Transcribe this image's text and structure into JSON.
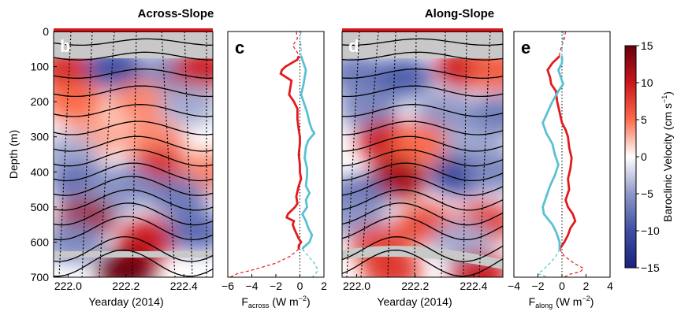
{
  "chart_data": [
    {
      "type": "heatmap",
      "panel_label": "b",
      "title": "Across-Slope",
      "xlabel": "Yearday (2014)",
      "ylabel": "Depth (m)",
      "xlim": [
        221.95,
        222.5
      ],
      "ylim": [
        700,
        0
      ],
      "xticks": [
        "222.0",
        "222.2",
        "222.4"
      ],
      "yticks": [
        "0",
        "100",
        "200",
        "300",
        "400",
        "500",
        "600",
        "700"
      ],
      "blobs": [
        {
          "x": 222.0,
          "depth": 110,
          "value": 9
        },
        {
          "x": 222.16,
          "depth": 105,
          "value": -10
        },
        {
          "x": 222.36,
          "depth": 115,
          "value": -6
        },
        {
          "x": 222.46,
          "depth": 110,
          "value": 10
        },
        {
          "x": 222.02,
          "depth": 200,
          "value": 5
        },
        {
          "x": 222.25,
          "depth": 200,
          "value": 4
        },
        {
          "x": 222.42,
          "depth": 210,
          "value": -4
        },
        {
          "x": 222.1,
          "depth": 300,
          "value": 3
        },
        {
          "x": 222.3,
          "depth": 310,
          "value": 4
        },
        {
          "x": 222.0,
          "depth": 350,
          "value": -4
        },
        {
          "x": 222.32,
          "depth": 390,
          "value": 9
        },
        {
          "x": 222.48,
          "depth": 400,
          "value": 4
        },
        {
          "x": 222.04,
          "depth": 430,
          "value": -8
        },
        {
          "x": 222.2,
          "depth": 440,
          "value": -6
        },
        {
          "x": 222.12,
          "depth": 480,
          "value": -5
        },
        {
          "x": 222.38,
          "depth": 470,
          "value": -7
        },
        {
          "x": 222.06,
          "depth": 535,
          "value": 12
        },
        {
          "x": 222.28,
          "depth": 590,
          "value": 10
        },
        {
          "x": 222.45,
          "depth": 570,
          "value": -8
        },
        {
          "x": 222.02,
          "depth": 600,
          "value": -6
        },
        {
          "x": 222.2,
          "depth": 680,
          "value": 15
        }
      ],
      "colorbar": {
        "label": "Baroclinic Velocity (cm s",
        "label_sup": "−1",
        "label_end": ")",
        "ticks": [
          "15",
          "10",
          "5",
          "0",
          "−5",
          "−10",
          "−15"
        ],
        "range": [
          -15,
          15
        ]
      }
    },
    {
      "type": "line",
      "panel_label": "c",
      "xlabel": "F",
      "xlabel_sub": "across",
      "xlabel_unit": " (W m",
      "xlabel_sup": "−2",
      "xlabel_end": ")",
      "xlim": [
        -6,
        2
      ],
      "ylim": [
        700,
        0
      ],
      "xticks": [
        "−6",
        "−4",
        "−2",
        "0",
        "2"
      ],
      "series": [
        {
          "color": "#e31a1c",
          "style": "solid",
          "points": [
            [
              -0.1,
              70
            ],
            [
              -0.2,
              80
            ],
            [
              -1.2,
              100
            ],
            [
              -1.5,
              110
            ],
            [
              -1.6,
              120
            ],
            [
              -0.7,
              140
            ],
            [
              -0.8,
              160
            ],
            [
              -0.9,
              180
            ],
            [
              -0.5,
              200
            ],
            [
              -0.2,
              220
            ],
            [
              -0.2,
              250
            ],
            [
              -0.1,
              280
            ],
            [
              0,
              300
            ],
            [
              0,
              320
            ],
            [
              -0.1,
              350
            ],
            [
              0,
              380
            ],
            [
              0,
              400
            ],
            [
              0.1,
              420
            ],
            [
              -0.1,
              440
            ],
            [
              -0.3,
              470
            ],
            [
              -0.2,
              490
            ],
            [
              -0.4,
              500
            ],
            [
              -1.0,
              520
            ],
            [
              -1.1,
              530
            ],
            [
              -0.5,
              540
            ],
            [
              -0.6,
              550
            ],
            [
              -0.5,
              560
            ],
            [
              -0.3,
              575
            ],
            [
              -0.1,
              590
            ],
            [
              0.1,
              600
            ],
            [
              -0.1,
              610
            ],
            [
              -0.1,
              620
            ]
          ]
        },
        {
          "color": "#e31a1c",
          "style": "dashed",
          "points": [
            [
              -0.3,
              0
            ],
            [
              -0.2,
              20
            ],
            [
              -0.6,
              40
            ],
            [
              -0.2,
              60
            ],
            [
              -0.1,
              70
            ]
          ]
        },
        {
          "color": "#e31a1c",
          "style": "dashed",
          "points": [
            [
              -0.1,
              620
            ],
            [
              -0.8,
              640
            ],
            [
              -2.0,
              660
            ],
            [
              -4.0,
              680
            ],
            [
              -5.2,
              690
            ],
            [
              -5.8,
              700
            ]
          ]
        },
        {
          "color": "#5bc0d4",
          "style": "solid",
          "points": [
            [
              0.1,
              70
            ],
            [
              0.3,
              90
            ],
            [
              0.5,
              110
            ],
            [
              0.4,
              130
            ],
            [
              0.3,
              150
            ],
            [
              0.1,
              180
            ],
            [
              0.3,
              200
            ],
            [
              0.6,
              230
            ],
            [
              0.8,
              260
            ],
            [
              1.0,
              280
            ],
            [
              1.2,
              290
            ],
            [
              0.7,
              310
            ],
            [
              0.5,
              330
            ],
            [
              0.4,
              360
            ],
            [
              0.6,
              390
            ],
            [
              0.6,
              410
            ],
            [
              0.5,
              440
            ],
            [
              0.8,
              460
            ],
            [
              0.5,
              480
            ],
            [
              0.6,
              500
            ],
            [
              0.2,
              520
            ],
            [
              0.5,
              540
            ],
            [
              0.7,
              560
            ],
            [
              1.0,
              580
            ],
            [
              0.8,
              600
            ],
            [
              0.3,
              615
            ],
            [
              0.2,
              620
            ]
          ]
        },
        {
          "color": "#5bc0d4",
          "style": "dashed",
          "points": [
            [
              0.1,
              0
            ],
            [
              0.0,
              20
            ],
            [
              0.1,
              40
            ],
            [
              0.1,
              60
            ],
            [
              0.1,
              70
            ]
          ]
        },
        {
          "color": "#5bc0d4",
          "style": "dashed",
          "points": [
            [
              0.2,
              620
            ],
            [
              0.7,
              640
            ],
            [
              1.2,
              660
            ],
            [
              1.5,
              680
            ],
            [
              1.2,
              695
            ],
            [
              1.0,
              700
            ]
          ]
        }
      ]
    },
    {
      "type": "heatmap",
      "panel_label": "d",
      "title": "Along-Slope",
      "xlabel": "Yearday (2014)",
      "xlim": [
        221.95,
        222.5
      ],
      "ylim": [
        700,
        0
      ],
      "xticks": [
        "222.0",
        "222.2",
        "222.4"
      ],
      "blobs": [
        {
          "x": 222.0,
          "depth": 120,
          "value": -7
        },
        {
          "x": 222.16,
          "depth": 130,
          "value": -9
        },
        {
          "x": 222.37,
          "depth": 105,
          "value": 10
        },
        {
          "x": 222.48,
          "depth": 110,
          "value": 6
        },
        {
          "x": 222.04,
          "depth": 220,
          "value": -6
        },
        {
          "x": 222.3,
          "depth": 230,
          "value": -5
        },
        {
          "x": 222.48,
          "depth": 240,
          "value": -7
        },
        {
          "x": 222.1,
          "depth": 310,
          "value": 10
        },
        {
          "x": 222.22,
          "depth": 320,
          "value": 5
        },
        {
          "x": 222.4,
          "depth": 330,
          "value": -4
        },
        {
          "x": 222.14,
          "depth": 420,
          "value": 12
        },
        {
          "x": 222.35,
          "depth": 410,
          "value": -11
        },
        {
          "x": 222.48,
          "depth": 400,
          "value": -6
        },
        {
          "x": 222.0,
          "depth": 470,
          "value": -8
        },
        {
          "x": 222.0,
          "depth": 530,
          "value": -5
        },
        {
          "x": 222.24,
          "depth": 550,
          "value": 7
        },
        {
          "x": 222.44,
          "depth": 545,
          "value": 8
        },
        {
          "x": 222.08,
          "depth": 610,
          "value": 7
        },
        {
          "x": 222.36,
          "depth": 600,
          "value": -4
        },
        {
          "x": 222.12,
          "depth": 680,
          "value": 8
        },
        {
          "x": 222.42,
          "depth": 690,
          "value": 10
        }
      ]
    },
    {
      "type": "line",
      "panel_label": "e",
      "xlabel": "F",
      "xlabel_sub": "along",
      "xlabel_unit": " (W m",
      "xlabel_sup": "−2",
      "xlabel_end": ")",
      "xlim": [
        -4,
        4
      ],
      "ylim": [
        700,
        0
      ],
      "xticks": [
        "−4",
        "−2",
        "0",
        "2",
        "4"
      ],
      "series": [
        {
          "color": "#e31a1c",
          "style": "solid",
          "points": [
            [
              -0.2,
              70
            ],
            [
              -0.8,
              90
            ],
            [
              -1.2,
              110
            ],
            [
              -1.0,
              130
            ],
            [
              -0.9,
              150
            ],
            [
              -0.5,
              170
            ],
            [
              -0.4,
              200
            ],
            [
              -0.2,
              230
            ],
            [
              0,
              260
            ],
            [
              0.3,
              280
            ],
            [
              0.5,
              300
            ],
            [
              0.6,
              330
            ],
            [
              0.8,
              360
            ],
            [
              0.7,
              390
            ],
            [
              0.5,
              420
            ],
            [
              0.6,
              450
            ],
            [
              0.3,
              480
            ],
            [
              0.5,
              500
            ],
            [
              0.9,
              520
            ],
            [
              1.1,
              540
            ],
            [
              0.7,
              560
            ],
            [
              0.5,
              580
            ],
            [
              0.2,
              600
            ],
            [
              -0.1,
              615
            ],
            [
              -0.2,
              620
            ]
          ]
        },
        {
          "color": "#e31a1c",
          "style": "dashed",
          "points": [
            [
              0.3,
              0
            ],
            [
              0.2,
              20
            ],
            [
              0.0,
              40
            ],
            [
              -0.2,
              60
            ],
            [
              -0.2,
              70
            ]
          ]
        },
        {
          "color": "#e31a1c",
          "style": "dashed",
          "points": [
            [
              -0.2,
              620
            ],
            [
              0.2,
              640
            ],
            [
              1.0,
              660
            ],
            [
              1.8,
              675
            ],
            [
              1.5,
              685
            ],
            [
              0.6,
              692
            ],
            [
              0.2,
              700
            ]
          ]
        },
        {
          "color": "#5bc0d4",
          "style": "solid",
          "points": [
            [
              0,
              70
            ],
            [
              0,
              90
            ],
            [
              -0.3,
              110
            ],
            [
              -0.1,
              130
            ],
            [
              0.1,
              150
            ],
            [
              -0.3,
              170
            ],
            [
              -0.8,
              200
            ],
            [
              -1.2,
              230
            ],
            [
              -1.6,
              260
            ],
            [
              -1.3,
              290
            ],
            [
              -0.8,
              320
            ],
            [
              -0.6,
              350
            ],
            [
              -0.3,
              380
            ],
            [
              -0.6,
              410
            ],
            [
              -1.0,
              440
            ],
            [
              -1.3,
              470
            ],
            [
              -1.6,
              500
            ],
            [
              -1.5,
              520
            ],
            [
              -0.8,
              550
            ],
            [
              -0.5,
              570
            ],
            [
              -0.2,
              600
            ],
            [
              -0.2,
              620
            ]
          ]
        },
        {
          "color": "#5bc0d4",
          "style": "dashed",
          "points": [
            [
              0.1,
              0
            ],
            [
              0.1,
              20
            ],
            [
              0,
              40
            ],
            [
              0,
              60
            ],
            [
              0,
              70
            ]
          ]
        },
        {
          "color": "#5bc0d4",
          "style": "dashed",
          "points": [
            [
              -0.2,
              620
            ],
            [
              -0.5,
              640
            ],
            [
              -1.0,
              660
            ],
            [
              -1.6,
              680
            ],
            [
              -2.0,
              690
            ],
            [
              -1.2,
              700
            ]
          ]
        }
      ]
    }
  ]
}
